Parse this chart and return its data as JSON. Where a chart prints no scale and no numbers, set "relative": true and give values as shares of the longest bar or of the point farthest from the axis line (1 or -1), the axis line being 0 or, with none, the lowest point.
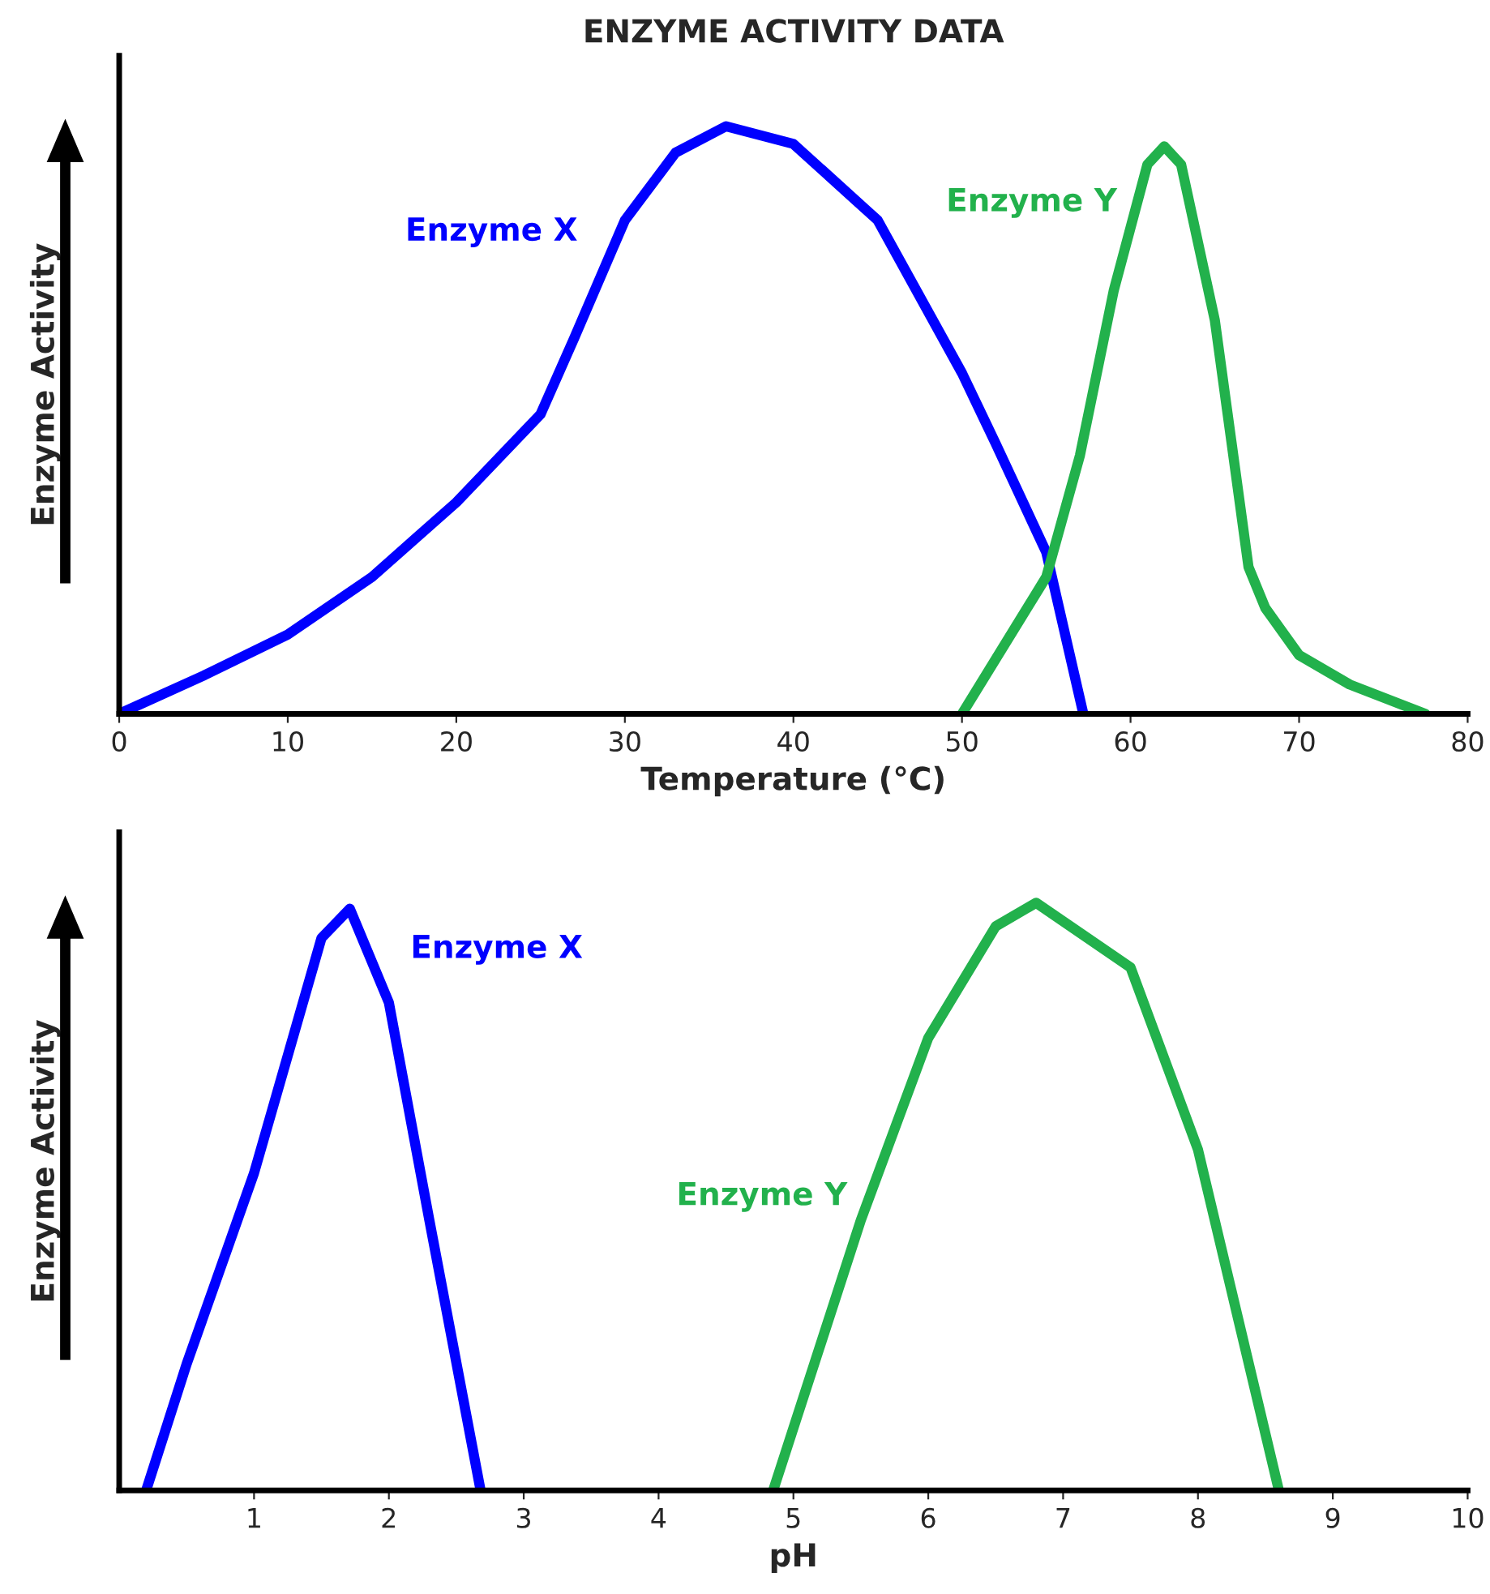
{
  "chart_data": [
    {
      "type": "line",
      "title": "ENZYME ACTIVITY DATA",
      "xlabel": "Temperature (°C)",
      "ylabel": "Enzyme Activity",
      "relative": true,
      "xlim": [
        0,
        80
      ],
      "xticks": [
        0,
        10,
        20,
        30,
        40,
        50,
        60,
        70,
        80
      ],
      "tick_labels": "x",
      "grid": false,
      "legend": false,
      "series": [
        {
          "name": "Enzyme X",
          "color": "#0000ff",
          "x": [
            0,
            5,
            10,
            15,
            20,
            25,
            27,
            30,
            33,
            36,
            40,
            45,
            50,
            52,
            55,
            57.2
          ],
          "values": [
            0,
            0.065,
            0.135,
            0.233,
            0.36,
            0.51,
            0.64,
            0.84,
            0.955,
            1,
            0.97,
            0.84,
            0.58,
            0.46,
            0.275,
            0
          ]
        },
        {
          "name": "Enzyme Y",
          "color": "#22b14c",
          "x": [
            50,
            55,
            57,
            59,
            61,
            62,
            63,
            65,
            67,
            68,
            70,
            73,
            77.5
          ],
          "values": [
            0,
            0.233,
            0.44,
            0.72,
            0.935,
            0.966,
            0.935,
            0.67,
            0.25,
            0.18,
            0.1,
            0.05,
            0
          ]
        }
      ]
    },
    {
      "type": "line",
      "xlabel": "pH",
      "ylabel": "Enzyme Activity",
      "relative": true,
      "xlim": [
        0,
        10
      ],
      "xticks": [
        1,
        2,
        3,
        4,
        5,
        6,
        7,
        8,
        9,
        10
      ],
      "tick_labels": "x",
      "grid": false,
      "legend": false,
      "series": [
        {
          "name": "Enzyme X",
          "color": "#0000ff",
          "x": [
            0.2,
            0.5,
            1,
            1.5,
            1.71,
            2,
            2.3,
            2.68
          ],
          "values": [
            0,
            0.215,
            0.54,
            0.94,
            0.99,
            0.83,
            0.46,
            0
          ]
        },
        {
          "name": "Enzyme Y",
          "color": "#22b14c",
          "x": [
            4.85,
            5.5,
            6,
            6.5,
            6.8,
            7.5,
            8,
            8.6
          ],
          "values": [
            0,
            0.46,
            0.77,
            0.96,
            1,
            0.89,
            0.58,
            0
          ]
        }
      ]
    }
  ]
}
